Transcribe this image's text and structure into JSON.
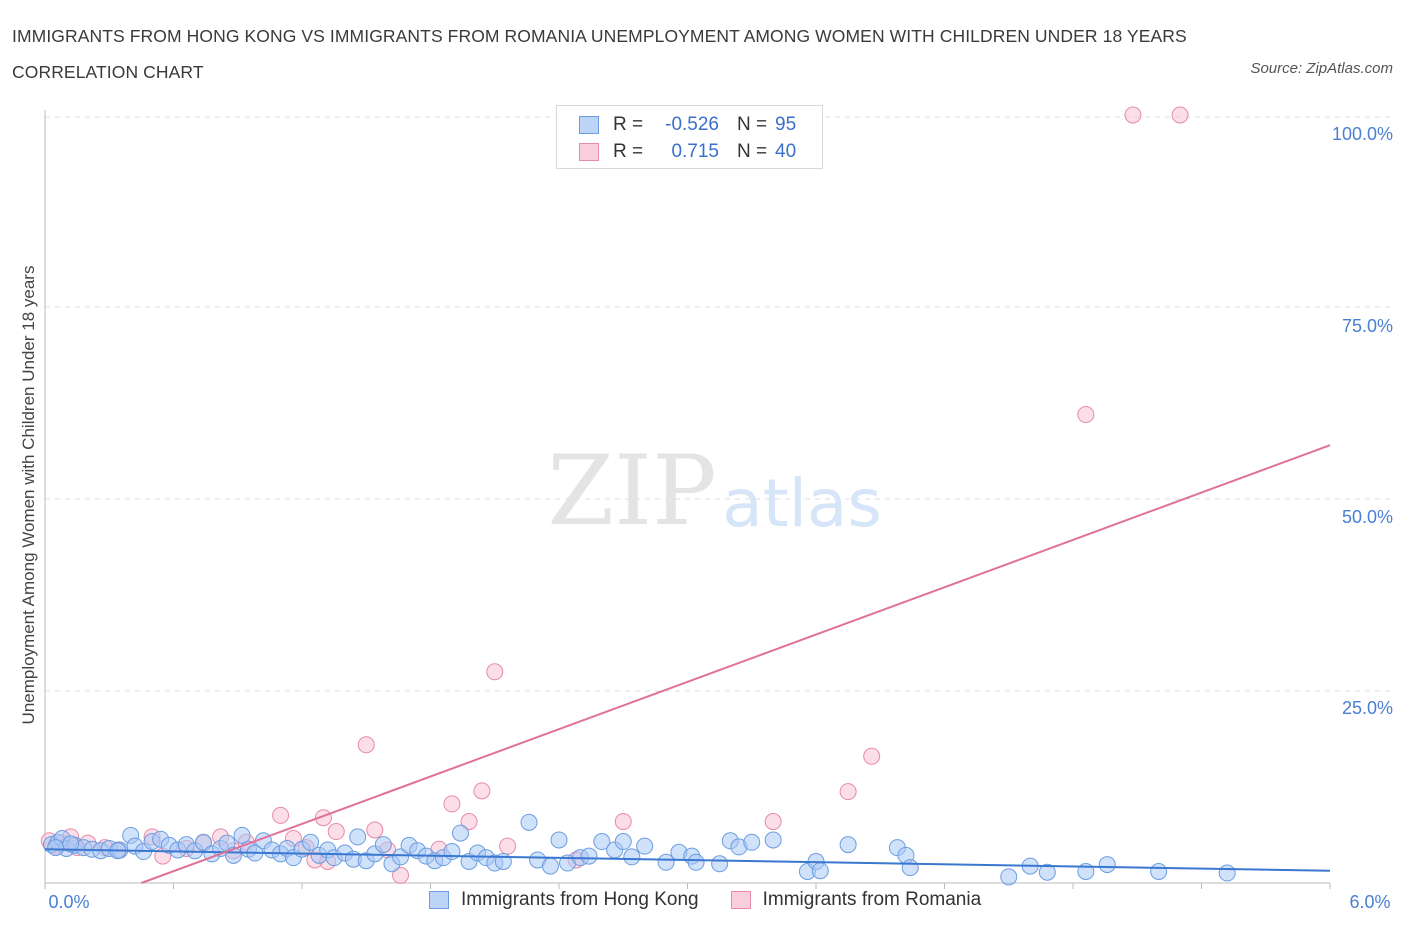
{
  "title": "IMMIGRANTS FROM HONG KONG VS IMMIGRANTS FROM ROMANIA UNEMPLOYMENT AMONG WOMEN WITH CHILDREN UNDER 18 YEARS CORRELATION CHART",
  "source": "Source: ZipAtlas.com",
  "watermark": {
    "zip": "ZIP",
    "atlas": "atlas"
  },
  "colors": {
    "blue_fill": "#a9c9f5",
    "blue_stroke": "#6b9de0",
    "blue_line": "#3a78d0",
    "pink_fill": "#f7c3d4",
    "pink_stroke": "#e88aaa",
    "pink_line": "#e0719a",
    "tick_text": "#4a7fd4",
    "grid": "#dddddd"
  },
  "legend": {
    "rows": [
      {
        "r_label": "R =",
        "r_value": "-0.526",
        "n_label": "N =",
        "n_value": "95"
      },
      {
        "r_label": "R =",
        "r_value": "0.715",
        "n_label": "N =",
        "n_value": "40"
      }
    ]
  },
  "chart_data": {
    "type": "scatter",
    "title": "IMMIGRANTS FROM HONG KONG VS IMMIGRANTS FROM ROMANIA UNEMPLOYMENT AMONG WOMEN WITH CHILDREN UNDER 18 YEARS CORRELATION CHART",
    "xlabel": "",
    "ylabel": "Unemployment Among Women with Children Under 18 years",
    "xlim": [
      0,
      6.0
    ],
    "ylim": [
      0,
      100
    ],
    "x_tick_labels": [
      "0.0%",
      "6.0%"
    ],
    "y_tick_labels": [
      "100.0%",
      "75.0%",
      "50.0%",
      "25.0%"
    ],
    "y_ticks": [
      100,
      75,
      50,
      25
    ],
    "grid": true,
    "series": [
      {
        "name": "Immigrants from Hong Kong",
        "color": "#a9c9f5",
        "trend": {
          "x0": 0.0,
          "y0": 4.4,
          "x1": 6.0,
          "y1": 1.6
        },
        "points": [
          [
            0.03,
            5.0
          ],
          [
            0.06,
            5.3
          ],
          [
            0.08,
            5.8
          ],
          [
            0.1,
            4.5
          ],
          [
            0.14,
            4.9
          ],
          [
            0.18,
            4.6
          ],
          [
            0.22,
            4.4
          ],
          [
            0.26,
            4.2
          ],
          [
            0.3,
            4.5
          ],
          [
            0.35,
            4.3
          ],
          [
            0.4,
            6.2
          ],
          [
            0.42,
            4.8
          ],
          [
            0.46,
            4.1
          ],
          [
            0.5,
            5.4
          ],
          [
            0.54,
            5.7
          ],
          [
            0.58,
            4.9
          ],
          [
            0.62,
            4.3
          ],
          [
            0.66,
            5.0
          ],
          [
            0.7,
            4.2
          ],
          [
            0.74,
            5.3
          ],
          [
            0.78,
            3.8
          ],
          [
            0.82,
            4.5
          ],
          [
            0.85,
            5.2
          ],
          [
            0.88,
            3.6
          ],
          [
            0.92,
            6.2
          ],
          [
            0.95,
            4.4
          ],
          [
            0.98,
            3.9
          ],
          [
            1.02,
            5.5
          ],
          [
            1.06,
            4.3
          ],
          [
            1.1,
            3.8
          ],
          [
            1.13,
            4.5
          ],
          [
            1.16,
            3.3
          ],
          [
            1.2,
            4.4
          ],
          [
            1.24,
            5.3
          ],
          [
            1.28,
            3.6
          ],
          [
            1.32,
            4.3
          ],
          [
            1.35,
            3.3
          ],
          [
            1.4,
            3.9
          ],
          [
            1.44,
            3.1
          ],
          [
            1.46,
            6.0
          ],
          [
            1.5,
            2.9
          ],
          [
            1.54,
            3.8
          ],
          [
            1.58,
            5.0
          ],
          [
            1.62,
            2.5
          ],
          [
            1.66,
            3.4
          ],
          [
            1.7,
            4.9
          ],
          [
            1.74,
            4.2
          ],
          [
            1.78,
            3.5
          ],
          [
            1.82,
            2.9
          ],
          [
            1.86,
            3.3
          ],
          [
            1.9,
            4.1
          ],
          [
            1.94,
            6.5
          ],
          [
            1.98,
            2.8
          ],
          [
            2.02,
            3.9
          ],
          [
            2.06,
            3.3
          ],
          [
            2.1,
            2.6
          ],
          [
            2.14,
            2.8
          ],
          [
            2.26,
            7.9
          ],
          [
            2.3,
            3.0
          ],
          [
            2.36,
            2.2
          ],
          [
            2.4,
            5.6
          ],
          [
            2.44,
            2.6
          ],
          [
            2.5,
            3.3
          ],
          [
            2.54,
            3.5
          ],
          [
            2.6,
            5.4
          ],
          [
            2.66,
            4.3
          ],
          [
            2.7,
            5.4
          ],
          [
            2.74,
            3.4
          ],
          [
            2.8,
            4.8
          ],
          [
            2.9,
            2.7
          ],
          [
            2.96,
            4.0
          ],
          [
            3.02,
            3.5
          ],
          [
            3.04,
            2.7
          ],
          [
            3.15,
            2.5
          ],
          [
            3.2,
            5.5
          ],
          [
            3.24,
            4.7
          ],
          [
            3.3,
            5.3
          ],
          [
            3.4,
            5.6
          ],
          [
            3.56,
            1.5
          ],
          [
            3.6,
            2.8
          ],
          [
            3.62,
            1.6
          ],
          [
            3.75,
            5.0
          ],
          [
            3.98,
            4.6
          ],
          [
            4.02,
            3.6
          ],
          [
            4.04,
            2.0
          ],
          [
            4.5,
            0.8
          ],
          [
            4.6,
            2.2
          ],
          [
            4.68,
            1.4
          ],
          [
            4.86,
            1.5
          ],
          [
            4.96,
            2.4
          ],
          [
            5.2,
            1.5
          ],
          [
            5.52,
            1.3
          ],
          [
            0.05,
            4.6
          ],
          [
            0.12,
            5.1
          ],
          [
            0.34,
            4.2
          ]
        ]
      },
      {
        "name": "Immigrants from Romania",
        "color": "#f7c3d4",
        "trend": {
          "x0": 0.45,
          "y0": 0.0,
          "x1": 6.0,
          "y1": 57.0
        },
        "points": [
          [
            0.02,
            5.5
          ],
          [
            0.05,
            4.8
          ],
          [
            0.08,
            5.2
          ],
          [
            0.12,
            6.0
          ],
          [
            0.15,
            4.6
          ],
          [
            0.2,
            5.2
          ],
          [
            0.28,
            4.6
          ],
          [
            0.34,
            4.3
          ],
          [
            0.5,
            6.0
          ],
          [
            0.55,
            3.5
          ],
          [
            0.66,
            4.5
          ],
          [
            0.74,
            5.2
          ],
          [
            0.82,
            6.0
          ],
          [
            0.88,
            4.2
          ],
          [
            0.94,
            5.3
          ],
          [
            1.1,
            8.8
          ],
          [
            1.16,
            5.8
          ],
          [
            1.22,
            4.6
          ],
          [
            1.26,
            3.0
          ],
          [
            1.3,
            8.5
          ],
          [
            1.32,
            2.8
          ],
          [
            1.36,
            6.7
          ],
          [
            1.5,
            18.0
          ],
          [
            1.54,
            6.9
          ],
          [
            1.6,
            4.3
          ],
          [
            1.66,
            1.0
          ],
          [
            1.84,
            4.4
          ],
          [
            1.9,
            10.3
          ],
          [
            1.98,
            8.0
          ],
          [
            2.04,
            12.0
          ],
          [
            2.1,
            27.5
          ],
          [
            2.16,
            4.8
          ],
          [
            2.48,
            3.0
          ],
          [
            2.7,
            8.0
          ],
          [
            3.4,
            8.0
          ],
          [
            3.75,
            11.9
          ],
          [
            3.86,
            16.5
          ],
          [
            4.86,
            61.0
          ],
          [
            5.08,
            100.0
          ],
          [
            5.3,
            100.0
          ]
        ]
      }
    ]
  },
  "bottom_legend": [
    "Immigrants from Hong Kong",
    "Immigrants from Romania"
  ]
}
